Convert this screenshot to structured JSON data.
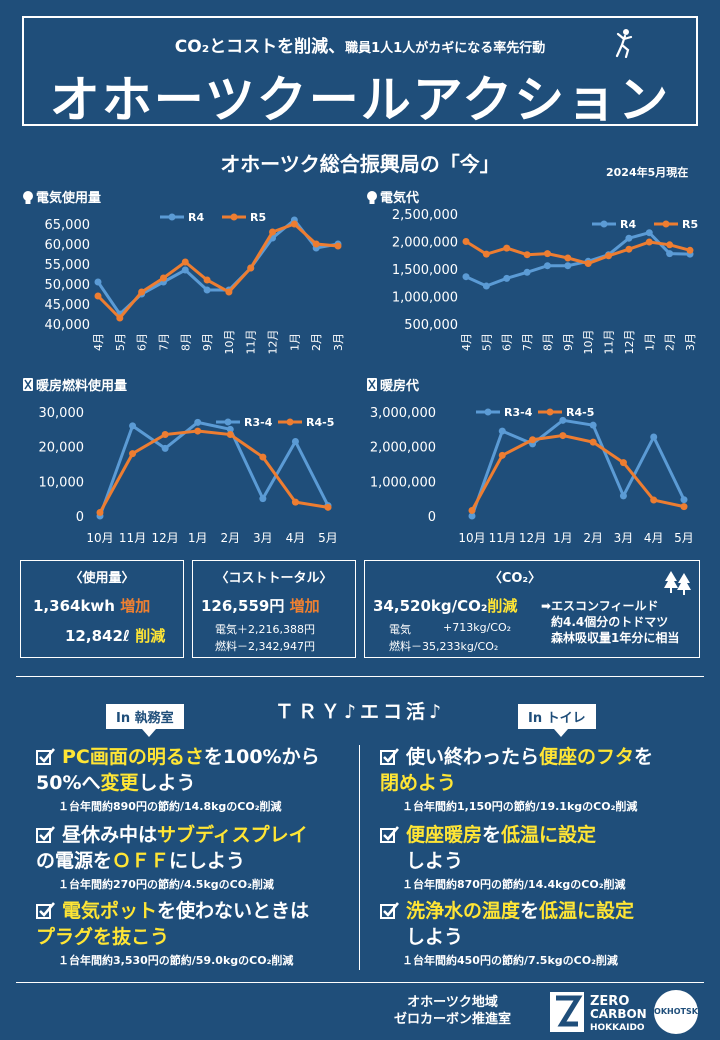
{
  "header": {
    "subtitle_a": "CO₂とコストを削減、",
    "subtitle_b": "職員1人1人がカギになる率先行動",
    "title": "オホーツクールアクション"
  },
  "section": {
    "title": "オホーツク総合振興局の「今」",
    "as_of": "2024年5月現在"
  },
  "colors": {
    "background": "#1f4e7a",
    "r4": "#5b9bd5",
    "r5": "#ed7d31",
    "highlight_orange": "#f08030",
    "highlight_yellow": "#ffe535"
  },
  "chart_data": [
    {
      "type": "line",
      "title": "電気使用量",
      "categories": [
        "4月",
        "5月",
        "6月",
        "7月",
        "8月",
        "9月",
        "10月",
        "11月",
        "12月",
        "1月",
        "2月",
        "3月"
      ],
      "series": [
        {
          "name": "R4",
          "values": [
            50500,
            42500,
            47500,
            50500,
            53500,
            48500,
            48500,
            54000,
            61500,
            66000,
            59000,
            60000
          ]
        },
        {
          "name": "R5",
          "values": [
            47000,
            41500,
            48000,
            51500,
            55500,
            51000,
            48000,
            54000,
            63000,
            65000,
            60000,
            59500
          ]
        }
      ],
      "yticks": [
        "65,000",
        "60,000",
        "55,000",
        "50,000",
        "45,000",
        "40,000"
      ],
      "ylim": [
        40000,
        65000
      ]
    },
    {
      "type": "line",
      "title": "電気代",
      "categories": [
        "4月",
        "5月",
        "6月",
        "7月",
        "8月",
        "9月",
        "10月",
        "11月",
        "12月",
        "1月",
        "2月",
        "3月"
      ],
      "series": [
        {
          "name": "R4",
          "values": [
            1360000,
            1190000,
            1330000,
            1440000,
            1560000,
            1560000,
            1640000,
            1760000,
            2060000,
            2160000,
            1780000,
            1770000
          ]
        },
        {
          "name": "R5",
          "values": [
            2000000,
            1770000,
            1880000,
            1760000,
            1780000,
            1700000,
            1600000,
            1740000,
            1860000,
            1990000,
            1940000,
            1840000
          ]
        }
      ],
      "yticks": [
        "2,500,000",
        "2,000,000",
        "1,500,000",
        "1,000,000",
        "500,000"
      ],
      "ylim": [
        500000,
        2500000
      ]
    },
    {
      "type": "line",
      "title": "暖房燃料使用量",
      "categories": [
        "10月",
        "11月",
        "12月",
        "1月",
        "2月",
        "3月",
        "4月",
        "5月"
      ],
      "series": [
        {
          "name": "R3-4",
          "values": [
            0,
            26000,
            19500,
            27000,
            25000,
            5000,
            21500,
            3000
          ]
        },
        {
          "name": "R4-5",
          "values": [
            1000,
            18000,
            23500,
            24500,
            23500,
            17000,
            4000,
            2500
          ]
        }
      ],
      "yticks": [
        "30,000",
        "20,000",
        "10,000",
        "0"
      ],
      "ylim": [
        0,
        30000
      ]
    },
    {
      "type": "line",
      "title": "暖房代",
      "categories": [
        "10月",
        "11月",
        "12月",
        "1月",
        "2月",
        "3月",
        "4月",
        "5月"
      ],
      "series": [
        {
          "name": "R3-4",
          "values": [
            0,
            2450000,
            2080000,
            2760000,
            2620000,
            580000,
            2280000,
            470000
          ]
        },
        {
          "name": "R4-5",
          "values": [
            160000,
            1750000,
            2200000,
            2320000,
            2130000,
            1540000,
            460000,
            270000
          ]
        }
      ],
      "yticks": [
        "3,000,000",
        "2,000,000",
        "1,000,000",
        "0"
      ],
      "ylim": [
        0,
        3000000
      ]
    }
  ],
  "summary": {
    "usage": {
      "title": "〈使用量〉",
      "elec_value": "1,364kwh",
      "elec_change": "増加",
      "fuel_value": "12,842ℓ",
      "fuel_change": "削減"
    },
    "cost": {
      "title": "〈コストトータル〉",
      "value": "126,559円",
      "change": "増加",
      "elec": "電気＋2,216,388円",
      "fuel": "燃料－2,342,947円"
    },
    "co2": {
      "title": "〈CO₂〉",
      "value": "34,520kg/CO₂",
      "change": "削減",
      "elec_label": "電気",
      "elec": "+713kg/CO₂",
      "fuel": "燃料－35,233kg/CO₂",
      "note1": "➡エスコンフィールド",
      "note2": "約4.4個分のトドマツ",
      "note3": "森林吸収量1年分に相当"
    }
  },
  "try": {
    "title": "ＴＲＹ♪エコ活♪",
    "office_tag": "In 執務室",
    "toilet_tag": "In トイレ",
    "office_items": [
      {
        "l1a": "PC画面の明るさ",
        "l1b": "を100%から",
        "l2a": "50%へ",
        "l2b": "変更",
        "l2c": "しよう",
        "note": "１台年間約890円の節約/14.8kgのCO₂削減"
      },
      {
        "l1a": "昼休み中は",
        "l1b": "サブディスプレイ",
        "l2a": "の電源を",
        "l2b": "ＯＦＦ",
        "l2c": "にしよう",
        "note": "１台年間約270円の節約/4.5kgのCO₂削減"
      },
      {
        "l1a": "電気ポット",
        "l1b": "を使わないときは",
        "l2a": "プラグを抜こう",
        "l2b": "",
        "l2c": "",
        "note": "１台年間約3,530円の節約/59.0kgのCO₂削減"
      }
    ],
    "toilet_items": [
      {
        "l1a": "使い終わったら",
        "l1b": "便座のフタ",
        "l1c": "を",
        "l2a": "閉めよう",
        "l2b": "",
        "note": "１台年間約1,150円の節約/19.1kgのCO₂削減"
      },
      {
        "l1a": "便座暖房",
        "l1b": "を",
        "l1c": "低温に設定",
        "l2a": "",
        "l2b": "しよう",
        "note": "１台年間約870円の節約/14.4kgのCO₂削減"
      },
      {
        "l1a": "洗浄水の温度",
        "l1b": "を",
        "l1c": "低温に設定",
        "l2a": "",
        "l2b": "しよう",
        "note": "１台年間約450円の節約/7.5kgのCO₂削減"
      }
    ]
  },
  "footer": {
    "org1": "オホーツク地域",
    "org2": "ゼロカーボン推進室",
    "logo_a": "ZERO",
    "logo_b": "CARBON",
    "logo_c": "HOKKAIDO",
    "seal": "OKHOTSK"
  }
}
